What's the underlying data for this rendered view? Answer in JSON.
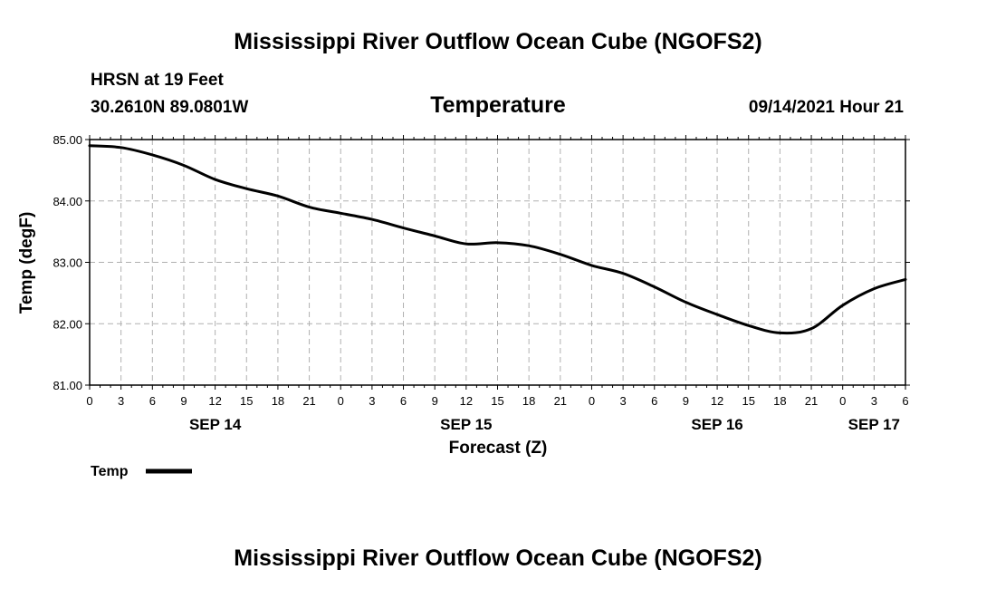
{
  "header": {
    "title": "Mississippi River Outflow Ocean Cube (NGOFS2)",
    "footer_title": "Mississippi River Outflow Ocean Cube (NGOFS2)",
    "station": "HRSN at 19 Feet",
    "coords": "30.2610N  89.0801W",
    "variable": "Temperature",
    "datetime": "09/14/2021 Hour 21"
  },
  "legend": {
    "label": "Temp"
  },
  "chart_data": {
    "type": "line",
    "title": "Temperature",
    "xlabel": "Forecast (Z)",
    "ylabel": "Temp (degF)",
    "ylim": [
      81.0,
      85.0
    ],
    "yticks": [
      "81.00",
      "82.00",
      "83.00",
      "84.00",
      "85.00"
    ],
    "xlim": [
      0,
      78
    ],
    "xtick_labels": [
      "0",
      "3",
      "6",
      "9",
      "12",
      "15",
      "18",
      "21",
      "0",
      "3",
      "6",
      "9",
      "12",
      "15",
      "18",
      "21",
      "0",
      "3",
      "6",
      "9",
      "12",
      "15",
      "18",
      "21",
      "0",
      "3",
      "6"
    ],
    "day_labels": [
      {
        "label": "SEP 14",
        "hour": 12
      },
      {
        "label": "SEP 15",
        "hour": 36
      },
      {
        "label": "SEP 16",
        "hour": 60
      },
      {
        "label": "SEP 17",
        "hour": 75
      }
    ],
    "grid": true,
    "series": [
      {
        "name": "Temp",
        "color": "#000000",
        "x": [
          0,
          3,
          6,
          9,
          12,
          15,
          18,
          21,
          24,
          27,
          30,
          33,
          36,
          39,
          42,
          45,
          48,
          51,
          54,
          57,
          60,
          63,
          66,
          69,
          72,
          75,
          78
        ],
        "values": [
          84.9,
          84.87,
          84.75,
          84.58,
          84.35,
          84.2,
          84.08,
          83.9,
          83.8,
          83.7,
          83.56,
          83.43,
          83.3,
          83.32,
          83.27,
          83.13,
          82.95,
          82.82,
          82.6,
          82.35,
          82.15,
          81.97,
          81.85,
          81.92,
          82.3,
          82.57,
          82.72
        ]
      }
    ]
  }
}
